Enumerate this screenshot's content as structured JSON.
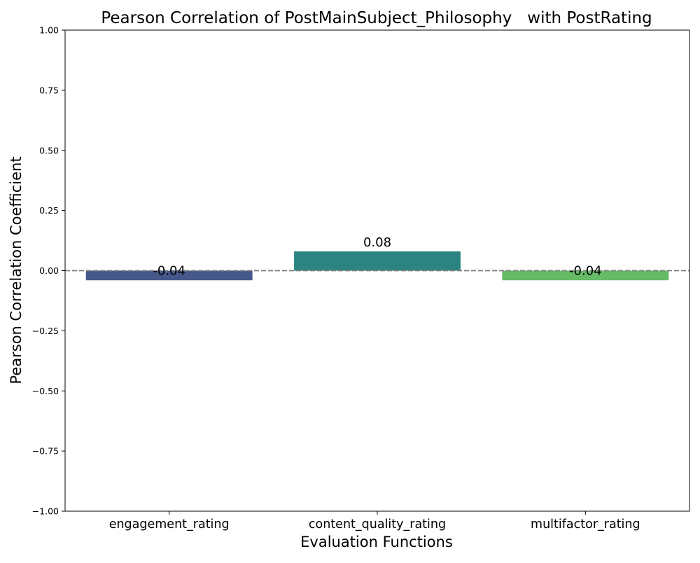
{
  "chart_data": {
    "type": "bar",
    "title": "Pearson Correlation of PostMainSubject_Philosophy   with PostRating",
    "xlabel": "Evaluation Functions",
    "ylabel": "Pearson Correlation Coefficient",
    "categories": [
      "engagement_rating",
      "content_quality_rating",
      "multifactor_rating"
    ],
    "values": [
      -0.04,
      0.08,
      -0.04
    ],
    "data_labels": [
      "-0.04",
      "0.08",
      "-0.04"
    ],
    "colors": [
      "#46578a",
      "#2c8480",
      "#65bb66"
    ],
    "ylim": [
      -1.0,
      1.0
    ],
    "yticks": [
      -1.0,
      -0.75,
      -0.5,
      -0.25,
      0.0,
      0.25,
      0.5,
      0.75,
      1.0
    ],
    "ytick_labels": [
      "−1.00",
      "−0.75",
      "−0.50",
      "−0.25",
      "0.00",
      "0.25",
      "0.50",
      "0.75",
      "1.00"
    ],
    "reference_line": {
      "y": 0.0,
      "style": "dashed",
      "color": "#808080"
    },
    "grid": false,
    "legend": "none"
  }
}
